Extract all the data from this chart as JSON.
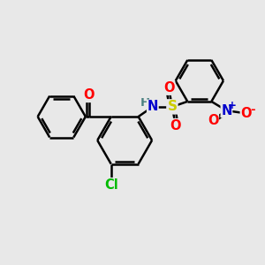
{
  "background_color": "#e8e8e8",
  "bond_color": "#000000",
  "bond_width": 1.8,
  "atom_colors": {
    "O": "#ff0000",
    "N": "#0000cc",
    "S": "#cccc00",
    "Cl": "#00bb00",
    "H": "#4a8080",
    "C": "#000000"
  },
  "font_size": 9.5
}
